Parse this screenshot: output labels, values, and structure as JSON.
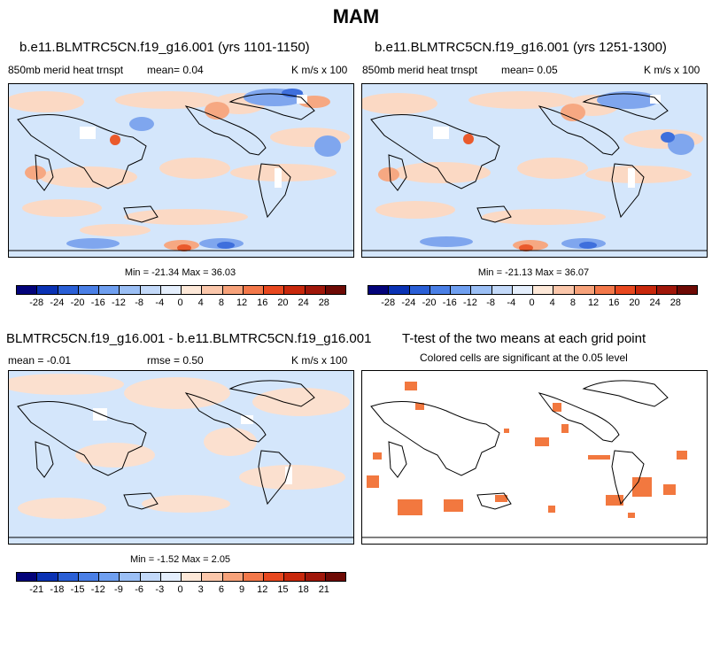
{
  "title": "MAM",
  "panels": [
    {
      "id": "p1",
      "title": "b.e11.BLMTRC5CN.f19_g16.001 (yrs 1101-1150)",
      "left_label": "850mb merid heat trnspt",
      "mean_label": "mean=  0.04",
      "units": "K m/s x 100",
      "minmax": "Min = -21.34 Max =  36.03"
    },
    {
      "id": "p2",
      "title": "b.e11.BLMTRC5CN.f19_g16.001 (yrs 1251-1300)",
      "left_label": "850mb merid heat trnspt",
      "mean_label": "mean=  0.05",
      "units": "K m/s x 100",
      "minmax": "Min = -21.13 Max =  36.07"
    },
    {
      "id": "p3",
      "title": "BLMTRC5CN.f19_g16.001 - b.e11.BLMTRC5CN.f19_g16.001",
      "left_label": "mean =  -0.01",
      "mean_label": "rmse =  0.50",
      "units": "K m/s x 100",
      "minmax": "Min = -1.52 Max =  2.05"
    },
    {
      "id": "p4",
      "title": "T-test of the two means at each grid point",
      "subtitle": "Colored cells are significant at the 0.05 level"
    }
  ],
  "colorbars": {
    "top": {
      "ticks": [
        "-28",
        "-24",
        "-20",
        "-16",
        "-12",
        "-8",
        "-4",
        "0",
        "4",
        "8",
        "12",
        "16",
        "20",
        "24",
        "28"
      ],
      "colors": [
        "#03037a",
        "#0a32b4",
        "#2a5fd6",
        "#4a7fe6",
        "#6f9ff0",
        "#9bbff5",
        "#c3d9f9",
        "#e4eefc",
        "#fde8d8",
        "#fbc7ab",
        "#f7a27a",
        "#f3784a",
        "#e8481f",
        "#c8280c",
        "#a0170a",
        "#6e0a05"
      ]
    },
    "bottom": {
      "ticks": [
        "-21",
        "-18",
        "-15",
        "-12",
        "-9",
        "-6",
        "-3",
        "0",
        "3",
        "6",
        "9",
        "12",
        "15",
        "18",
        "21"
      ],
      "colors": [
        "#03037a",
        "#0a32b4",
        "#2a5fd6",
        "#4a7fe6",
        "#6f9ff0",
        "#9bbff5",
        "#c3d9f9",
        "#e4eefc",
        "#fde8d8",
        "#fbc7ab",
        "#f7a27a",
        "#f3784a",
        "#e8481f",
        "#c8280c",
        "#a0170a",
        "#6e0a05"
      ]
    }
  },
  "map_colors": {
    "background": "#d4e6fb",
    "warm_light": "#fbd9c4",
    "warm_mid": "#f6a882",
    "warm_strong": "#ea5a2c",
    "cool_light": "#c3d9f9",
    "cool_mid": "#7fa6ee",
    "cool_strong": "#3e6fdc",
    "significant": "#f2783f"
  }
}
